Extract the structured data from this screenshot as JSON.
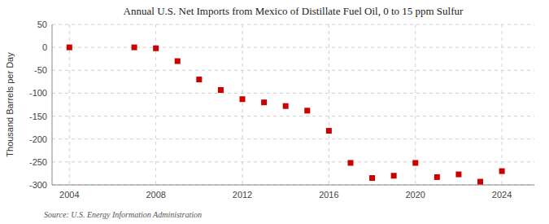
{
  "chart_data": {
    "type": "scatter",
    "title": "Annual U.S. Net Imports from Mexico of Distillate Fuel Oil, 0 to 15 ppm Sulfur",
    "ylabel": "Thousand Barrels per Day",
    "source": "Source: U.S. Energy Information Administration",
    "x": [
      2004,
      2007,
      2008,
      2009,
      2010,
      2011,
      2012,
      2013,
      2014,
      2015,
      2016,
      2017,
      2018,
      2019,
      2020,
      2021,
      2022,
      2023,
      2024
    ],
    "values": [
      0,
      0,
      -2,
      -30,
      -70,
      -93,
      -113,
      -120,
      -128,
      -138,
      -182,
      -252,
      -285,
      -280,
      -252,
      -283,
      -277,
      -293,
      -270
    ],
    "color": "#cc0000",
    "marker": "square",
    "xlim": [
      2003.2,
      2025.5
    ],
    "xticks": [
      2004,
      2008,
      2012,
      2016,
      2020,
      2024
    ],
    "ylim": [
      -300,
      50
    ],
    "yticks": [
      50,
      0,
      -50,
      -100,
      -150,
      -200,
      -250,
      -300
    ],
    "grid": true
  }
}
